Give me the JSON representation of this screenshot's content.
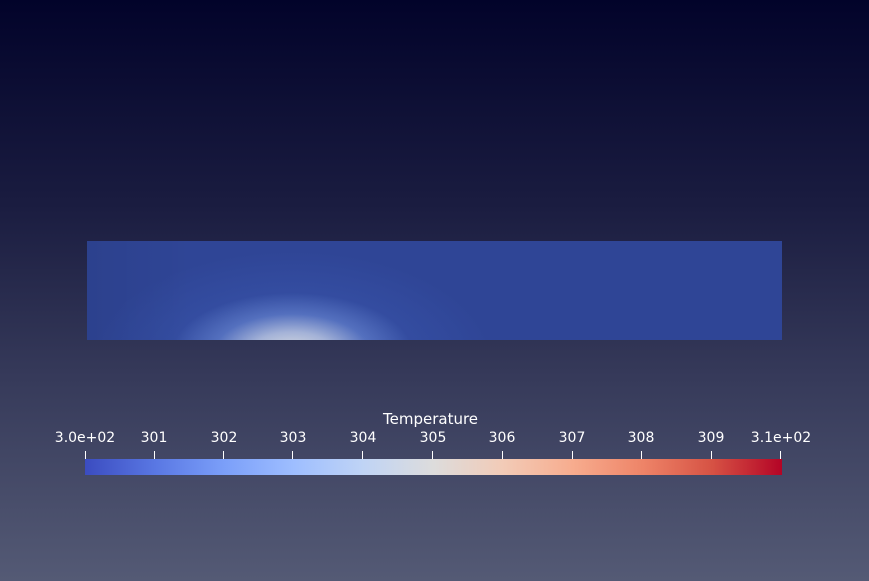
{
  "colorbar": {
    "title": "Temperature",
    "ticks": [
      "3.0e+02",
      "301",
      "302",
      "303",
      "304",
      "305",
      "306",
      "307",
      "308",
      "309",
      "3.1e+02"
    ],
    "range": [
      300,
      310
    ],
    "colormap": [
      "#3b4cc0",
      "#dddcdc",
      "#b40426"
    ]
  },
  "scene": {
    "background_top": "#02032a",
    "background_bottom": "#545a75",
    "domain_color": "#2f4596",
    "hot_color": "#e6e6e4"
  }
}
